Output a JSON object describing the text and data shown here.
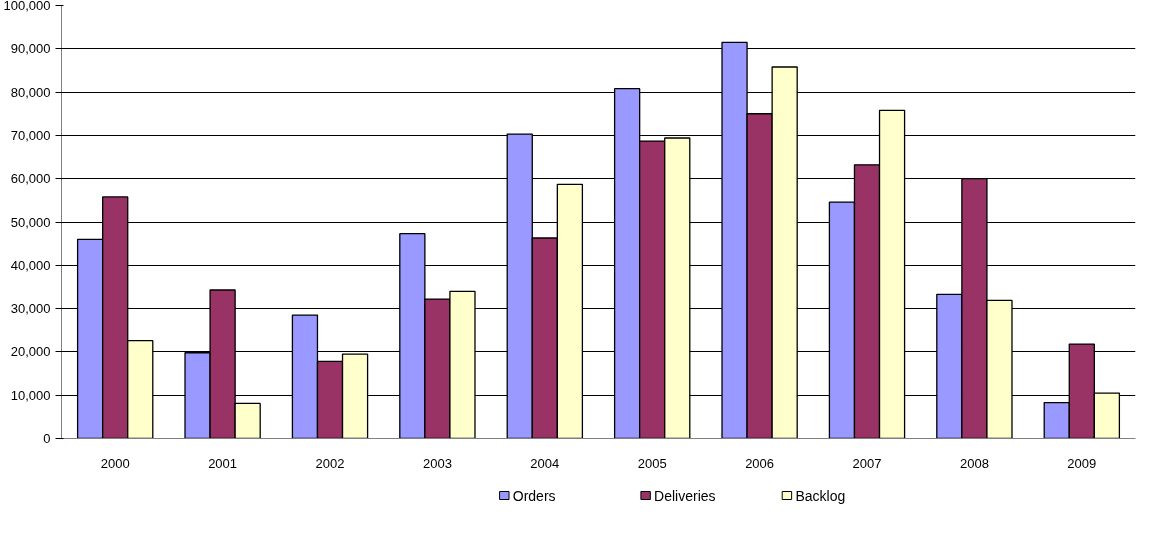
{
  "chart_data": {
    "type": "bar",
    "categories": [
      "2000",
      "2001",
      "2002",
      "2003",
      "2004",
      "2005",
      "2006",
      "2007",
      "2008",
      "2009"
    ],
    "series": [
      {
        "name": "Orders",
        "color": "#9999ff",
        "values": [
          46000,
          19800,
          28500,
          47300,
          70300,
          80800,
          91500,
          54600,
          33300,
          8300
        ]
      },
      {
        "name": "Deliveries",
        "color": "#993366",
        "values": [
          55800,
          34300,
          17800,
          32200,
          46300,
          68700,
          75000,
          63200,
          60000,
          21800
        ]
      },
      {
        "name": "Backlog",
        "color": "#ffffcc",
        "values": [
          22600,
          8100,
          19500,
          34000,
          58700,
          69400,
          85800,
          75800,
          31900,
          10500
        ]
      }
    ],
    "ylim": [
      0,
      100000
    ],
    "yticks": [
      {
        "value": 0,
        "label": "0"
      },
      {
        "value": 10000,
        "label": "10,000"
      },
      {
        "value": 20000,
        "label": "20,000"
      },
      {
        "value": 30000,
        "label": "30,000"
      },
      {
        "value": 40000,
        "label": "40,000"
      },
      {
        "value": 50000,
        "label": "50,000"
      },
      {
        "value": 60000,
        "label": "60,000"
      },
      {
        "value": 70000,
        "label": "70,000"
      },
      {
        "value": 80000,
        "label": "80,000"
      },
      {
        "value": 90000,
        "label": "90,000"
      },
      {
        "value": 100000,
        "label": "100,000"
      }
    ],
    "grid": "y",
    "legend": "bottom"
  }
}
